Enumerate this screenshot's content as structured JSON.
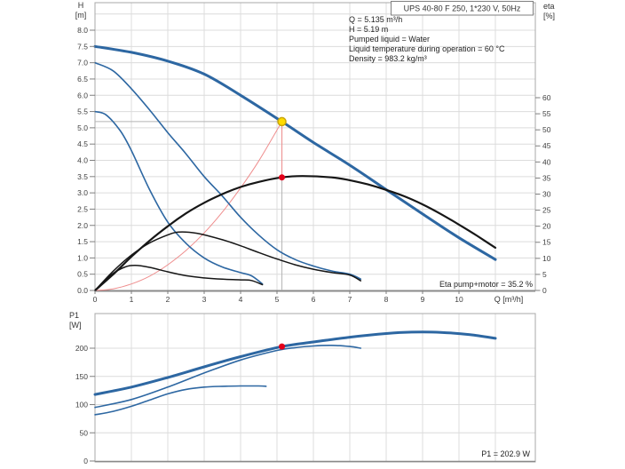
{
  "info_panel": {
    "lines": [
      "Q = 5.135 m³/h",
      "H = 5.19 m",
      "Pumped liquid = Water",
      "Liquid temperature during operation = 60 °C",
      "Density = 983.2 kg/m³"
    ]
  },
  "annotations": {
    "eta_note": "Eta pump+motor = 35.2 %",
    "p1_note": "P1 = 202.9 W"
  },
  "colors": {
    "curve_blue": "#2d67a2",
    "curve_black": "#161616",
    "system_curve_red": "#ef8e8e",
    "marker_yellow": "#ffdc00",
    "marker_yellow_ring": "#c9a50a",
    "marker_red": "#e2001a",
    "grid": "#dcdcdc",
    "border": "#a8a8a8",
    "axis_line": "#8a8a8a",
    "crosshair": "#b5b5b5"
  },
  "chart_data": [
    {
      "type": "line",
      "title": "UPS 40-80 F 250, 1*230 V, 50Hz",
      "xlabel": "Q [m³/h]",
      "ylabel_left": "H [m]",
      "ylabel_left_lines": [
        "H",
        "[m]"
      ],
      "ylabel_right": "eta [%]",
      "ylabel_right_lines": [
        "eta",
        "[%]"
      ],
      "xlim": [
        0,
        12.1
      ],
      "ylim_left": [
        0,
        8.85
      ],
      "ylim_right": [
        0,
        89.6
      ],
      "grid": true,
      "legend_position": "none",
      "x_ticks": [
        0,
        1,
        2,
        3,
        4,
        5,
        6,
        7,
        8,
        9,
        10
      ],
      "y_ticks_left": [
        "0.0",
        "0.5",
        "1.0",
        "1.5",
        "2.0",
        "2.5",
        "3.0",
        "3.5",
        "4.0",
        "4.5",
        "5.0",
        "5.5",
        "6.0",
        "6.5",
        "7.0",
        "7.5",
        "8.0"
      ],
      "y_ticks_right": [
        0,
        5,
        10,
        15,
        20,
        25,
        30,
        35,
        40,
        45,
        50,
        55,
        60
      ],
      "operating_point": {
        "Q": 5.135,
        "H": 5.19,
        "eta": 35.2
      },
      "series": [
        {
          "name": "system-curve",
          "axis": "H",
          "color": "#ef8e8e",
          "width": 1,
          "points": [
            [
              0,
              0
            ],
            [
              0.5,
              0.05
            ],
            [
              1,
              0.2
            ],
            [
              1.5,
              0.44
            ],
            [
              2,
              0.79
            ],
            [
              2.5,
              1.23
            ],
            [
              3,
              1.77
            ],
            [
              3.5,
              2.41
            ],
            [
              4,
              3.15
            ],
            [
              4.5,
              3.98
            ],
            [
              5.135,
              5.19
            ]
          ]
        },
        {
          "name": "pump-curve-speed-2",
          "axis": "H",
          "color": "#2d67a2",
          "width": 1.6,
          "points": [
            [
              0,
              7.0
            ],
            [
              0.5,
              6.75
            ],
            [
              1,
              6.2
            ],
            [
              1.5,
              5.55
            ],
            [
              2,
              4.85
            ],
            [
              2.5,
              4.2
            ],
            [
              3,
              3.5
            ],
            [
              3.5,
              2.9
            ],
            [
              4,
              2.25
            ],
            [
              4.5,
              1.7
            ],
            [
              5,
              1.25
            ],
            [
              5.5,
              0.95
            ],
            [
              6,
              0.75
            ],
            [
              6.5,
              0.6
            ],
            [
              7,
              0.5
            ],
            [
              7.3,
              0.35
            ]
          ]
        },
        {
          "name": "pump-curve-speed-1",
          "axis": "H",
          "color": "#2d67a2",
          "width": 1.6,
          "points": [
            [
              0,
              5.5
            ],
            [
              0.3,
              5.4
            ],
            [
              0.7,
              4.9
            ],
            [
              1,
              4.3
            ],
            [
              1.5,
              3.1
            ],
            [
              2,
              2.1
            ],
            [
              2.5,
              1.45
            ],
            [
              3,
              1.0
            ],
            [
              3.5,
              0.72
            ],
            [
              4,
              0.55
            ],
            [
              4.3,
              0.45
            ],
            [
              4.6,
              0.2
            ]
          ]
        },
        {
          "name": "pump-curve-speed-3-selected",
          "axis": "H",
          "color": "#2d67a2",
          "width": 3,
          "points": [
            [
              0,
              7.5
            ],
            [
              1,
              7.32
            ],
            [
              2,
              7.05
            ],
            [
              3,
              6.65
            ],
            [
              4,
              6.0
            ],
            [
              5.135,
              5.19
            ],
            [
              6,
              4.55
            ],
            [
              7,
              3.85
            ],
            [
              8,
              3.1
            ],
            [
              9,
              2.35
            ],
            [
              10,
              1.62
            ],
            [
              11,
              0.95
            ]
          ]
        },
        {
          "name": "efficiency-curve-speed-2",
          "axis": "eta",
          "color": "#161616",
          "width": 1.5,
          "points": [
            [
              0,
              0
            ],
            [
              0.5,
              6
            ],
            [
              1,
              11
            ],
            [
              1.5,
              14.8
            ],
            [
              2,
              17.3
            ],
            [
              2.3,
              18.2
            ],
            [
              2.8,
              17.8
            ],
            [
              3.5,
              15.8
            ],
            [
              4,
              13.9
            ],
            [
              4.5,
              11.8
            ],
            [
              5,
              9.8
            ],
            [
              5.5,
              8
            ],
            [
              6,
              6.6
            ],
            [
              6.5,
              5.6
            ],
            [
              7,
              4.8
            ],
            [
              7.3,
              3
            ]
          ]
        },
        {
          "name": "efficiency-curve-speed-1",
          "axis": "eta",
          "color": "#161616",
          "width": 1.5,
          "points": [
            [
              0,
              0
            ],
            [
              0.4,
              4.5
            ],
            [
              0.8,
              7.2
            ],
            [
              1.1,
              7.8
            ],
            [
              1.5,
              7.2
            ],
            [
              2,
              5.8
            ],
            [
              2.5,
              4.6
            ],
            [
              3,
              3.9
            ],
            [
              3.5,
              3.5
            ],
            [
              4,
              3.3
            ],
            [
              4.3,
              3.1
            ],
            [
              4.6,
              1.8
            ]
          ]
        },
        {
          "name": "efficiency-curve-speed-3",
          "axis": "eta",
          "color": "#161616",
          "width": 2.2,
          "points": [
            [
              0,
              0
            ],
            [
              0.5,
              5
            ],
            [
              1,
              10.5
            ],
            [
              1.5,
              15.5
            ],
            [
              2,
              20
            ],
            [
              2.5,
              24
            ],
            [
              3,
              27.3
            ],
            [
              3.5,
              30
            ],
            [
              4,
              32.2
            ],
            [
              4.5,
              33.8
            ],
            [
              5.135,
              35.2
            ],
            [
              5.7,
              35.6
            ],
            [
              6.5,
              35.2
            ],
            [
              7,
              34.3
            ],
            [
              7.5,
              33
            ],
            [
              8,
              31.3
            ],
            [
              8.5,
              29.3
            ],
            [
              9,
              26.8
            ],
            [
              9.5,
              23.8
            ],
            [
              10,
              20.5
            ],
            [
              10.5,
              17
            ],
            [
              11,
              13.3
            ]
          ]
        }
      ]
    },
    {
      "type": "line",
      "title": "",
      "xlabel": "",
      "ylabel_left": "P1 [W]",
      "ylabel_left_lines": [
        "P1",
        "[W]"
      ],
      "xlim": [
        0,
        12.1
      ],
      "ylim_left": [
        0,
        261
      ],
      "grid": true,
      "legend_position": "none",
      "x_ticks": [],
      "y_ticks_left": [
        0,
        50,
        100,
        150,
        200
      ],
      "operating_point": {
        "Q": 5.135,
        "P1": 202.9
      },
      "series": [
        {
          "name": "power-curve-speed-2",
          "axis": "P1",
          "color": "#2d67a2",
          "width": 1.6,
          "points": [
            [
              0,
              95
            ],
            [
              1,
              109
            ],
            [
              2,
              131
            ],
            [
              3,
              156
            ],
            [
              4,
              179
            ],
            [
              5,
              196
            ],
            [
              5.5,
              201
            ],
            [
              6,
              204
            ],
            [
              6.5,
              205
            ],
            [
              7,
              203
            ],
            [
              7.3,
              200
            ]
          ]
        },
        {
          "name": "power-curve-speed-1",
          "axis": "P1",
          "color": "#2d67a2",
          "width": 1.6,
          "points": [
            [
              0,
              82
            ],
            [
              0.5,
              88
            ],
            [
              1,
              97
            ],
            [
              1.5,
              108
            ],
            [
              2,
              119
            ],
            [
              2.5,
              127
            ],
            [
              3,
              131
            ],
            [
              3.5,
              132.5
            ],
            [
              4,
              133
            ],
            [
              4.5,
              133
            ],
            [
              4.7,
              132.5
            ]
          ]
        },
        {
          "name": "power-curve-speed-3-selected",
          "axis": "P1",
          "color": "#2d67a2",
          "width": 3,
          "points": [
            [
              0,
              118
            ],
            [
              1,
              131
            ],
            [
              2,
              148
            ],
            [
              3,
              167
            ],
            [
              4,
              185
            ],
            [
              5.135,
              202.9
            ],
            [
              6,
              211
            ],
            [
              7,
              219.5
            ],
            [
              8,
              226
            ],
            [
              8.7,
              228.5
            ],
            [
              9.5,
              228
            ],
            [
              10.3,
              224
            ],
            [
              11,
              217.5
            ]
          ]
        }
      ]
    }
  ]
}
